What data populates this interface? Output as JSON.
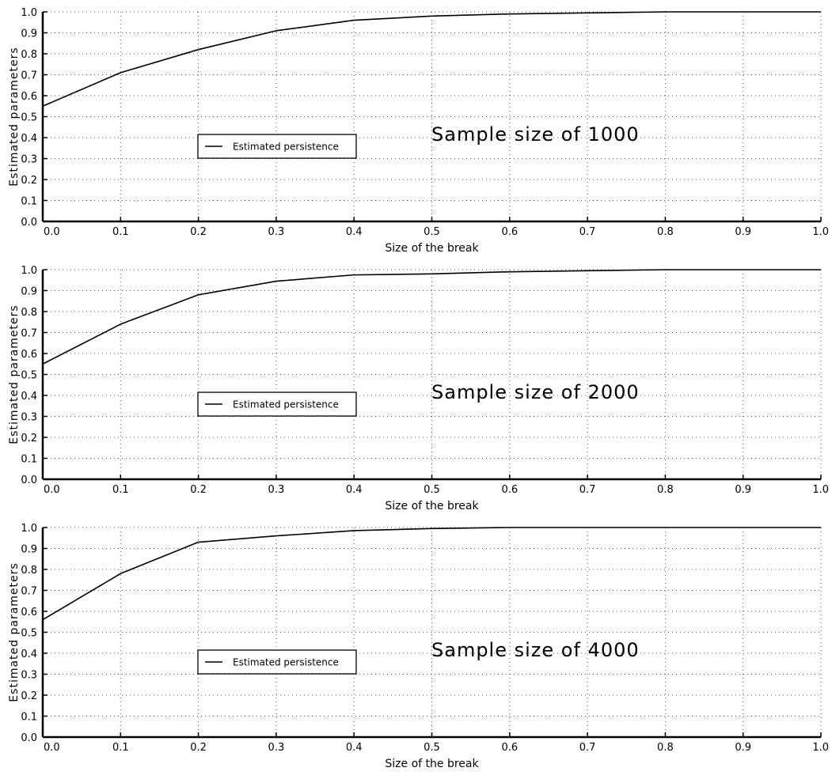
{
  "chart_data": [
    {
      "type": "line",
      "title": "",
      "annotation": "Sample size of 1000",
      "xlabel": "Size of the break",
      "ylabel": "Estimated parameters",
      "xlim": [
        0,
        1
      ],
      "ylim": [
        0,
        1
      ],
      "x_ticks": [
        "0.0",
        "0.1",
        "0.2",
        "0.3",
        "0.4",
        "0.5",
        "0.6",
        "0.7",
        "0.8",
        "0.9",
        "1.0"
      ],
      "y_ticks": [
        "0.0",
        "0.1",
        "0.2",
        "0.3",
        "0.4",
        "0.5",
        "0.6",
        "0.7",
        "0.8",
        "0.9",
        "1.0"
      ],
      "grid": true,
      "legend_position": "center-left",
      "x": [
        0.0,
        0.1,
        0.2,
        0.3,
        0.4,
        0.5,
        0.6,
        0.7,
        0.8,
        0.9,
        1.0
      ],
      "series": [
        {
          "name": "Estimated persistence",
          "values": [
            0.55,
            0.71,
            0.82,
            0.91,
            0.96,
            0.98,
            0.99,
            0.995,
            1.0,
            1.0,
            1.0
          ]
        }
      ]
    },
    {
      "type": "line",
      "title": "",
      "annotation": "Sample size of 2000",
      "xlabel": "Size of the break",
      "ylabel": "Estimated parameters",
      "xlim": [
        0,
        1
      ],
      "ylim": [
        0,
        1
      ],
      "x_ticks": [
        "0.0",
        "0.1",
        "0.2",
        "0.3",
        "0.4",
        "0.5",
        "0.6",
        "0.7",
        "0.8",
        "0.9",
        "1.0"
      ],
      "y_ticks": [
        "0.0",
        "0.1",
        "0.2",
        "0.3",
        "0.4",
        "0.5",
        "0.6",
        "0.7",
        "0.8",
        "0.9",
        "1.0"
      ],
      "grid": true,
      "legend_position": "center-left",
      "x": [
        0.0,
        0.1,
        0.2,
        0.3,
        0.4,
        0.5,
        0.6,
        0.7,
        0.8,
        0.9,
        1.0
      ],
      "series": [
        {
          "name": "Estimated persistence",
          "values": [
            0.55,
            0.74,
            0.88,
            0.945,
            0.975,
            0.98,
            0.99,
            0.995,
            1.0,
            1.0,
            1.0
          ]
        }
      ]
    },
    {
      "type": "line",
      "title": "",
      "annotation": "Sample size of 4000",
      "xlabel": "Size of the break",
      "ylabel": "Estimated parameters",
      "xlim": [
        0,
        1
      ],
      "ylim": [
        0,
        1
      ],
      "x_ticks": [
        "0.0",
        "0.1",
        "0.2",
        "0.3",
        "0.4",
        "0.5",
        "0.6",
        "0.7",
        "0.8",
        "0.9",
        "1.0"
      ],
      "y_ticks": [
        "0.0",
        "0.1",
        "0.2",
        "0.3",
        "0.4",
        "0.5",
        "0.6",
        "0.7",
        "0.8",
        "0.9",
        "1.0"
      ],
      "grid": true,
      "legend_position": "center-left",
      "x": [
        0.0,
        0.1,
        0.2,
        0.3,
        0.4,
        0.5,
        0.6,
        0.7,
        0.8,
        0.9,
        1.0
      ],
      "series": [
        {
          "name": "Estimated persistence",
          "values": [
            0.56,
            0.78,
            0.93,
            0.96,
            0.985,
            0.995,
            1.0,
            1.0,
            1.0,
            1.0,
            1.0
          ]
        }
      ]
    }
  ]
}
